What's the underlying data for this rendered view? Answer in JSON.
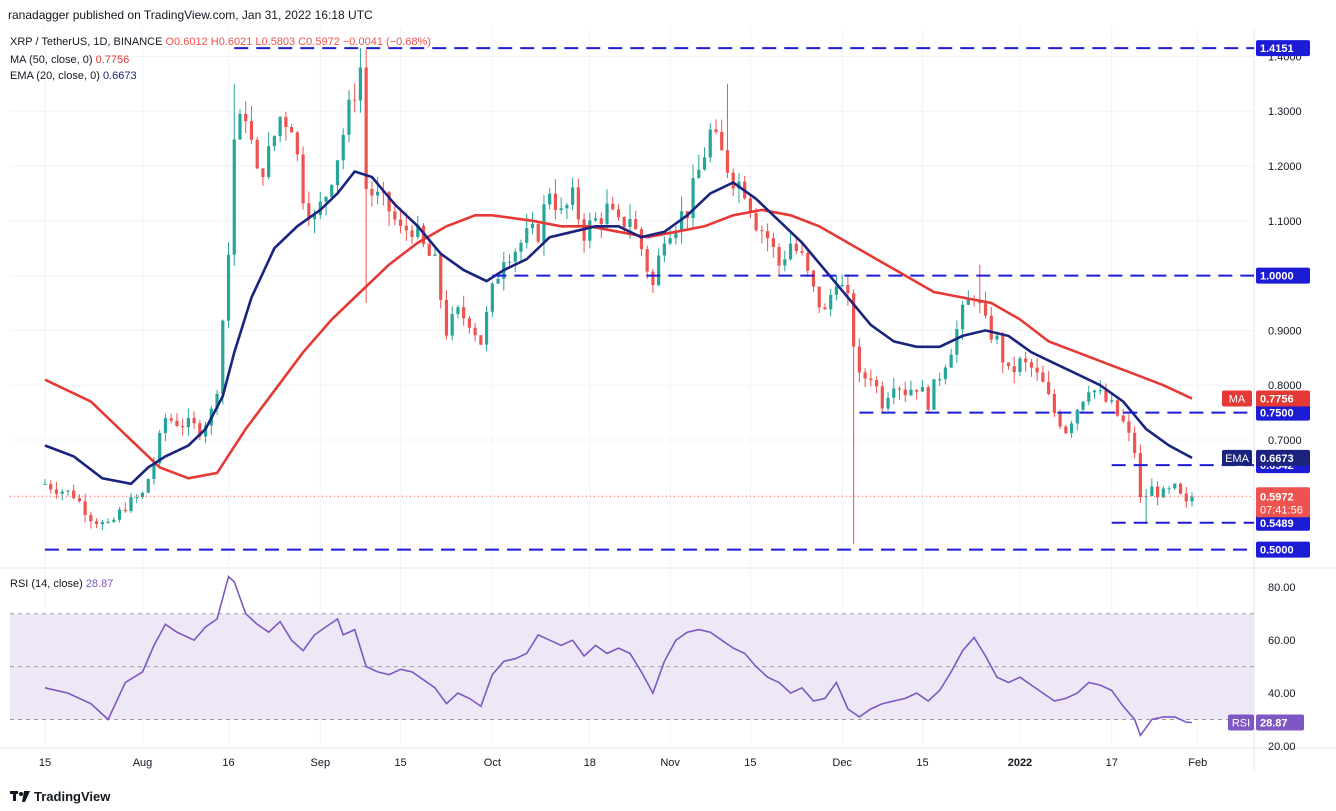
{
  "header": {
    "publisher": "ranadagger published on TradingView.com, Jan 31, 2022 16:18 UTC"
  },
  "legend": {
    "symbol": "XRP / TetherUS, 1D, BINANCE",
    "ohlc": "O0.6012 H0.6021 L0.5803 C0.5972 −0.0041 (−0.68%)",
    "ma_label": "MA (50, close, 0)",
    "ma_value": "0.7756",
    "ema_label": "EMA (20, close, 0)",
    "ema_value": "0.6673",
    "rsi_label": "RSI (14, close)",
    "rsi_value": "28.87"
  },
  "footer": {
    "brand": "TradingView"
  },
  "colors": {
    "up": "#26a69a",
    "down": "#ef5350",
    "ma": "#e53935",
    "ema": "#1a237e",
    "level": "#1c1cd6",
    "rsi": "#7e57c2",
    "rsi_band": "#ede7f6"
  },
  "chart_data": {
    "type": "candlestick",
    "title": "XRP / TetherUS, 1D, BINANCE",
    "ylim": [
      0.47,
      1.43
    ],
    "yticks": [
      "0.8000",
      "0.9000",
      "1.0000",
      "1.1000",
      "1.2000",
      "1.3000",
      "1.4000",
      "0.7000"
    ],
    "x_ticks": [
      {
        "label": "15",
        "day": 0
      },
      {
        "label": "Aug",
        "day": 17
      },
      {
        "label": "16",
        "day": 32
      },
      {
        "label": "Sep",
        "day": 48
      },
      {
        "label": "15",
        "day": 62
      },
      {
        "label": "Oct",
        "day": 78
      },
      {
        "label": "18",
        "day": 95
      },
      {
        "label": "Nov",
        "day": 109
      },
      {
        "label": "15",
        "day": 123
      },
      {
        "label": "Dec",
        "day": 139
      },
      {
        "label": "15",
        "day": 153
      },
      {
        "label": "2022",
        "day": 170
      },
      {
        "label": "17",
        "day": 186
      },
      {
        "label": "Feb",
        "day": 201
      }
    ],
    "levels": [
      {
        "label": "1.4151",
        "value": 1.4151,
        "from_day": 33,
        "to_day": 210
      },
      {
        "label": "1.0000",
        "value": 1.0,
        "from_day": 78,
        "to_day": 210
      },
      {
        "label": "0.7500",
        "value": 0.75,
        "from_day": 142,
        "to_day": 210
      },
      {
        "label": "0.6542",
        "value": 0.6542,
        "from_day": 186,
        "to_day": 210
      },
      {
        "label": "0.5489",
        "value": 0.5489,
        "from_day": 186,
        "to_day": 210
      },
      {
        "label": "0.5000",
        "value": 0.5,
        "from_day": 0,
        "to_day": 210
      }
    ],
    "price_tags": [
      {
        "label": "0.7756",
        "value": 0.7756,
        "tag": "MA",
        "color": "#e53935"
      },
      {
        "label": "0.6673",
        "value": 0.6673,
        "tag": "EMA",
        "color": "#1a237e"
      },
      {
        "label": "0.5972",
        "value": 0.5972,
        "sub": "07:41:56",
        "color": "#ef5350"
      }
    ],
    "close_path": [
      [
        0,
        0.62
      ],
      [
        5,
        0.6
      ],
      [
        8,
        0.56
      ],
      [
        11,
        0.54
      ],
      [
        14,
        0.58
      ],
      [
        17,
        0.6
      ],
      [
        19,
        0.66
      ],
      [
        21,
        0.74
      ],
      [
        24,
        0.73
      ],
      [
        27,
        0.72
      ],
      [
        29,
        0.75
      ],
      [
        30,
        0.8
      ],
      [
        31,
        0.92
      ],
      [
        32,
        1.04
      ],
      [
        33,
        1.25
      ],
      [
        35,
        1.3
      ],
      [
        37,
        1.18
      ],
      [
        39,
        1.22
      ],
      [
        41,
        1.29
      ],
      [
        43,
        1.28
      ],
      [
        45,
        1.15
      ],
      [
        47,
        1.1
      ],
      [
        49,
        1.15
      ],
      [
        51,
        1.22
      ],
      [
        53,
        1.3
      ],
      [
        55,
        1.38
      ],
      [
        56,
        1.16
      ],
      [
        58,
        1.14
      ],
      [
        60,
        1.12
      ],
      [
        62,
        1.08
      ],
      [
        64,
        1.09
      ],
      [
        66,
        1.05
      ],
      [
        68,
        1.02
      ],
      [
        70,
        0.9
      ],
      [
        72,
        0.93
      ],
      [
        74,
        0.92
      ],
      [
        76,
        0.88
      ],
      [
        78,
        0.97
      ],
      [
        80,
        1.04
      ],
      [
        82,
        1.05
      ],
      [
        84,
        1.07
      ],
      [
        86,
        1.08
      ],
      [
        88,
        1.16
      ],
      [
        90,
        1.11
      ],
      [
        92,
        1.14
      ],
      [
        94,
        1.08
      ],
      [
        96,
        1.1
      ],
      [
        98,
        1.12
      ],
      [
        100,
        1.09
      ],
      [
        102,
        1.11
      ],
      [
        104,
        1.05
      ],
      [
        106,
        0.98
      ],
      [
        108,
        1.08
      ],
      [
        110,
        1.1
      ],
      [
        112,
        1.12
      ],
      [
        114,
        1.19
      ],
      [
        116,
        1.26
      ],
      [
        118,
        1.22
      ],
      [
        120,
        1.18
      ],
      [
        122,
        1.16
      ],
      [
        124,
        1.1
      ],
      [
        126,
        1.07
      ],
      [
        128,
        1.02
      ],
      [
        130,
        1.06
      ],
      [
        132,
        1.03
      ],
      [
        134,
        0.97
      ],
      [
        136,
        0.93
      ],
      [
        138,
        1.0
      ],
      [
        140,
        0.95
      ],
      [
        142,
        0.81
      ],
      [
        144,
        0.82
      ],
      [
        146,
        0.77
      ],
      [
        148,
        0.81
      ],
      [
        150,
        0.79
      ],
      [
        152,
        0.8
      ],
      [
        154,
        0.77
      ],
      [
        156,
        0.82
      ],
      [
        158,
        0.87
      ],
      [
        160,
        0.93
      ],
      [
        162,
        0.97
      ],
      [
        164,
        0.91
      ],
      [
        166,
        0.88
      ],
      [
        168,
        0.82
      ],
      [
        170,
        0.84
      ],
      [
        172,
        0.83
      ],
      [
        174,
        0.8
      ],
      [
        176,
        0.75
      ],
      [
        178,
        0.72
      ],
      [
        180,
        0.76
      ],
      [
        182,
        0.8
      ],
      [
        184,
        0.78
      ],
      [
        186,
        0.76
      ],
      [
        188,
        0.73
      ],
      [
        190,
        0.68
      ],
      [
        191,
        0.59
      ],
      [
        193,
        0.61
      ],
      [
        195,
        0.6
      ],
      [
        197,
        0.61
      ],
      [
        199,
        0.58
      ],
      [
        200,
        0.5972
      ]
    ],
    "wick_extremes": [
      {
        "day": 33,
        "value": 1.35
      },
      {
        "day": 55,
        "value": 1.4151
      },
      {
        "day": 56,
        "value": 0.95
      },
      {
        "day": 119,
        "value": 1.35
      },
      {
        "day": 141,
        "value": 0.51
      },
      {
        "day": 10,
        "value": 0.535
      },
      {
        "day": 192,
        "value": 0.5489
      },
      {
        "day": 163,
        "value": 1.02
      }
    ],
    "series": [
      {
        "name": "MA (50, close, 0)",
        "points": [
          [
            0,
            0.81
          ],
          [
            8,
            0.77
          ],
          [
            15,
            0.7
          ],
          [
            20,
            0.65
          ],
          [
            25,
            0.63
          ],
          [
            30,
            0.64
          ],
          [
            35,
            0.72
          ],
          [
            40,
            0.79
          ],
          [
            45,
            0.86
          ],
          [
            50,
            0.92
          ],
          [
            55,
            0.97
          ],
          [
            60,
            1.02
          ],
          [
            65,
            1.06
          ],
          [
            70,
            1.09
          ],
          [
            75,
            1.11
          ],
          [
            78,
            1.11
          ],
          [
            85,
            1.1
          ],
          [
            90,
            1.09
          ],
          [
            95,
            1.09
          ],
          [
            100,
            1.08
          ],
          [
            105,
            1.07
          ],
          [
            110,
            1.08
          ],
          [
            115,
            1.09
          ],
          [
            120,
            1.11
          ],
          [
            125,
            1.12
          ],
          [
            130,
            1.11
          ],
          [
            135,
            1.09
          ],
          [
            140,
            1.06
          ],
          [
            145,
            1.03
          ],
          [
            150,
            1.0
          ],
          [
            155,
            0.97
          ],
          [
            160,
            0.96
          ],
          [
            165,
            0.95
          ],
          [
            170,
            0.92
          ],
          [
            175,
            0.88
          ],
          [
            180,
            0.86
          ],
          [
            185,
            0.84
          ],
          [
            190,
            0.82
          ],
          [
            195,
            0.8
          ],
          [
            200,
            0.7756
          ]
        ]
      },
      {
        "name": "EMA (20, close, 0)",
        "points": [
          [
            0,
            0.69
          ],
          [
            5,
            0.67
          ],
          [
            10,
            0.63
          ],
          [
            15,
            0.62
          ],
          [
            18,
            0.65
          ],
          [
            21,
            0.67
          ],
          [
            25,
            0.69
          ],
          [
            28,
            0.72
          ],
          [
            31,
            0.78
          ],
          [
            33,
            0.86
          ],
          [
            36,
            0.96
          ],
          [
            40,
            1.05
          ],
          [
            44,
            1.09
          ],
          [
            48,
            1.12
          ],
          [
            51,
            1.15
          ],
          [
            54,
            1.19
          ],
          [
            57,
            1.18
          ],
          [
            61,
            1.13
          ],
          [
            65,
            1.09
          ],
          [
            69,
            1.04
          ],
          [
            73,
            1.01
          ],
          [
            77,
            0.99
          ],
          [
            80,
            1.01
          ],
          [
            84,
            1.03
          ],
          [
            88,
            1.07
          ],
          [
            92,
            1.08
          ],
          [
            96,
            1.09
          ],
          [
            100,
            1.09
          ],
          [
            104,
            1.07
          ],
          [
            108,
            1.08
          ],
          [
            112,
            1.11
          ],
          [
            116,
            1.15
          ],
          [
            120,
            1.17
          ],
          [
            124,
            1.14
          ],
          [
            128,
            1.1
          ],
          [
            132,
            1.06
          ],
          [
            136,
            1.01
          ],
          [
            140,
            0.96
          ],
          [
            144,
            0.91
          ],
          [
            148,
            0.88
          ],
          [
            152,
            0.87
          ],
          [
            156,
            0.87
          ],
          [
            160,
            0.89
          ],
          [
            164,
            0.9
          ],
          [
            168,
            0.89
          ],
          [
            172,
            0.86
          ],
          [
            176,
            0.84
          ],
          [
            180,
            0.82
          ],
          [
            184,
            0.8
          ],
          [
            188,
            0.77
          ],
          [
            192,
            0.72
          ],
          [
            196,
            0.69
          ],
          [
            200,
            0.6673
          ]
        ]
      }
    ],
    "rsi": {
      "label": "RSI (14, close)",
      "value": "28.87",
      "ylim": [
        20,
        85
      ],
      "yticks": [
        "80.00",
        "60.00",
        "40.00",
        "20.00"
      ],
      "band": [
        30,
        70
      ],
      "mid": 50,
      "points": [
        [
          0,
          42
        ],
        [
          4,
          40
        ],
        [
          8,
          36
        ],
        [
          11,
          30
        ],
        [
          14,
          44
        ],
        [
          17,
          48
        ],
        [
          19,
          58
        ],
        [
          21,
          66
        ],
        [
          23,
          63
        ],
        [
          26,
          60
        ],
        [
          28,
          65
        ],
        [
          30,
          68
        ],
        [
          32,
          84
        ],
        [
          33,
          82
        ],
        [
          35,
          70
        ],
        [
          37,
          66
        ],
        [
          39,
          63
        ],
        [
          41,
          67
        ],
        [
          43,
          60
        ],
        [
          45,
          56
        ],
        [
          47,
          62
        ],
        [
          49,
          65
        ],
        [
          51,
          68
        ],
        [
          52,
          62
        ],
        [
          54,
          64
        ],
        [
          56,
          50
        ],
        [
          58,
          48
        ],
        [
          60,
          47
        ],
        [
          62,
          49
        ],
        [
          64,
          48
        ],
        [
          66,
          45
        ],
        [
          68,
          42
        ],
        [
          70,
          36
        ],
        [
          72,
          40
        ],
        [
          74,
          38
        ],
        [
          76,
          35
        ],
        [
          78,
          47
        ],
        [
          80,
          52
        ],
        [
          82,
          53
        ],
        [
          84,
          55
        ],
        [
          86,
          62
        ],
        [
          88,
          60
        ],
        [
          90,
          58
        ],
        [
          92,
          60
        ],
        [
          94,
          54
        ],
        [
          96,
          58
        ],
        [
          98,
          55
        ],
        [
          100,
          57
        ],
        [
          102,
          55
        ],
        [
          104,
          48
        ],
        [
          106,
          40
        ],
        [
          108,
          52
        ],
        [
          110,
          60
        ],
        [
          112,
          63
        ],
        [
          114,
          64
        ],
        [
          116,
          63
        ],
        [
          118,
          60
        ],
        [
          120,
          57
        ],
        [
          122,
          55
        ],
        [
          124,
          50
        ],
        [
          126,
          46
        ],
        [
          128,
          44
        ],
        [
          130,
          40
        ],
        [
          132,
          42
        ],
        [
          134,
          37
        ],
        [
          136,
          38
        ],
        [
          138,
          44
        ],
        [
          140,
          34
        ],
        [
          142,
          31
        ],
        [
          144,
          34
        ],
        [
          146,
          36
        ],
        [
          148,
          37
        ],
        [
          150,
          38
        ],
        [
          152,
          40
        ],
        [
          154,
          37
        ],
        [
          156,
          41
        ],
        [
          158,
          48
        ],
        [
          160,
          56
        ],
        [
          162,
          61
        ],
        [
          164,
          54
        ],
        [
          166,
          46
        ],
        [
          168,
          44
        ],
        [
          170,
          46
        ],
        [
          172,
          43
        ],
        [
          174,
          40
        ],
        [
          176,
          37
        ],
        [
          178,
          38
        ],
        [
          180,
          40
        ],
        [
          182,
          44
        ],
        [
          184,
          43
        ],
        [
          186,
          41
        ],
        [
          188,
          35
        ],
        [
          190,
          30
        ],
        [
          191,
          24
        ],
        [
          193,
          30
        ],
        [
          195,
          31
        ],
        [
          197,
          31
        ],
        [
          199,
          29
        ],
        [
          200,
          28.87
        ]
      ]
    }
  }
}
